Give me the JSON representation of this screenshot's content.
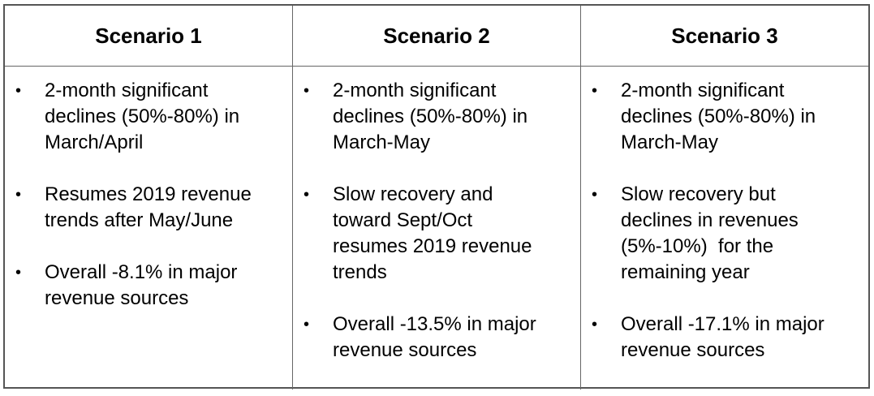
{
  "columns": [
    {
      "title": "Scenario 1",
      "bullets": [
        [
          "2-month significant",
          "declines (50%-80%) in",
          "March/April"
        ],
        [
          "Resumes 2019 revenue",
          "trends after May/June"
        ],
        [
          "Overall -8.1% in major",
          "revenue sources"
        ]
      ]
    },
    {
      "title": "Scenario 2",
      "bullets": [
        [
          "2-month significant",
          "declines (50%-80%) in",
          "March-May"
        ],
        [
          "Slow recovery and",
          "toward Sept/Oct",
          "resumes 2019 revenue",
          "trends"
        ],
        [
          "Overall -13.5% in major",
          "revenue sources"
        ]
      ]
    },
    {
      "title": "Scenario 3",
      "bullets": [
        [
          "2-month significant",
          "declines (50%-80%) in",
          "March-May"
        ],
        [
          "Slow recovery but",
          "declines in revenues",
          "(5%-10%)  for the",
          "remaining year"
        ],
        [
          "Overall -17.1% in major",
          "revenue sources"
        ]
      ]
    }
  ],
  "bullet_glyph": "•"
}
